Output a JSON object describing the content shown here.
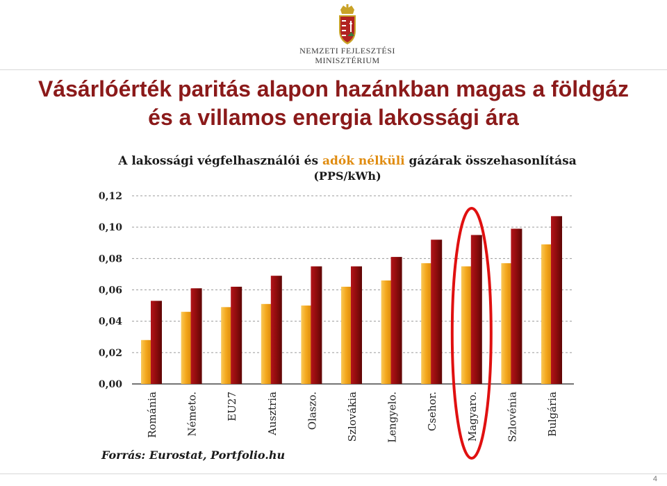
{
  "header": {
    "ministry_line1": "NEMZETI FEJLESZTÉSI",
    "ministry_line2": "MINISZTÉRIUM",
    "logo_icon": "hungarian-coat-of-arms-icon"
  },
  "slide": {
    "title_line1": "Vásárlóérték paritás alapon hazánkban magas a földgáz",
    "title_line2": "és a villamos energia lakossági ára",
    "source": "Forrás: Eurostat, Portfolio.hu",
    "page_number": "4"
  },
  "chart_data": {
    "type": "bar",
    "title_part1": "A lakossági végfelhasználói és ",
    "title_highlight": "adók nélküli",
    "title_part2": " gázárak összehasonlítása",
    "unit": "(PPS/kWh)",
    "categories": [
      "Románia",
      "Németo.",
      "EU27",
      "Ausztria",
      "Olaszo.",
      "Szlovákia",
      "Lengyelo.",
      "Csehor.",
      "Magyaro.",
      "Szlovénia",
      "Bulgária"
    ],
    "series": [
      {
        "values": [
          0.028,
          0.046,
          0.049,
          0.051,
          0.05,
          0.062,
          0.066,
          0.077,
          0.075,
          0.077,
          0.089
        ]
      },
      {
        "values": [
          0.053,
          0.061,
          0.062,
          0.069,
          0.075,
          0.075,
          0.081,
          0.092,
          0.095,
          0.099,
          0.107
        ]
      }
    ],
    "ylim": [
      0,
      0.12
    ],
    "yticks": [
      "0,00",
      "0,02",
      "0,04",
      "0,06",
      "0,08",
      "0,10",
      "0,12"
    ],
    "grid": true,
    "highlight_category": "Magyaro.",
    "colors": {
      "series1": "#f2a81d",
      "series2": "#8b0a0a",
      "highlight_ring": "#e01010",
      "title_accent": "#e08c10",
      "slide_title": "#8b1a1a"
    }
  }
}
